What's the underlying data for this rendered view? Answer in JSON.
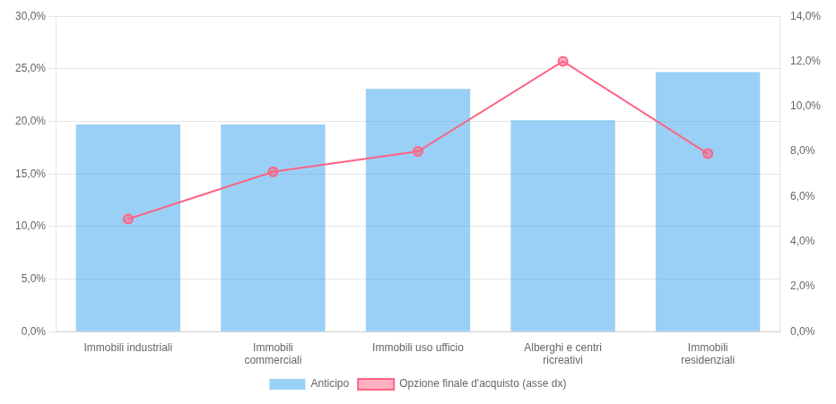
{
  "chart_data": {
    "type": "bar",
    "categories": [
      "Immobili industriali",
      "Immobili\ncommerciali",
      "Immobili uso ufficio",
      "Alberghi e centri\nricreativi",
      "Immobili\nresidenziali"
    ],
    "series": [
      {
        "name": "Anticipo",
        "type": "bar",
        "values": [
          0.197,
          0.197,
          0.231,
          0.201,
          0.247
        ]
      },
      {
        "name": "Opzione finale d'acquisto (asse dx)",
        "type": "line",
        "axis": "y2",
        "marker": "circle",
        "values": [
          0.05,
          0.071,
          0.08,
          0.12,
          0.079
        ]
      }
    ],
    "ylim": [
      0.0,
      0.3
    ],
    "yticks": [
      {
        "value": 0.0,
        "label": "0,0%"
      },
      {
        "value": 0.05,
        "label": "5,0%"
      },
      {
        "value": 0.1,
        "label": "10,0%"
      },
      {
        "value": 0.15,
        "label": "15,0%"
      },
      {
        "value": 0.2,
        "label": "20,0%"
      },
      {
        "value": 0.25,
        "label": "25,0%"
      },
      {
        "value": 0.3,
        "label": "30,0%"
      }
    ],
    "y2lim": [
      0.0,
      0.14
    ],
    "y2ticks": [
      {
        "value": 0.0,
        "label": "0,0%"
      },
      {
        "value": 0.02,
        "label": "2,0%"
      },
      {
        "value": 0.04,
        "label": "4,0%"
      },
      {
        "value": 0.06,
        "label": "6,0%"
      },
      {
        "value": 0.08,
        "label": "8,0%"
      },
      {
        "value": 0.1,
        "label": "10,0%"
      },
      {
        "value": 0.12,
        "label": "12,0%"
      },
      {
        "value": 0.14,
        "label": "14,0%"
      }
    ],
    "grid": true,
    "legend": "bottom"
  }
}
